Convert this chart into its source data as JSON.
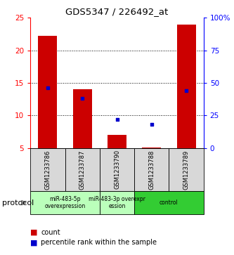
{
  "title": "GDS5347 / 226492_at",
  "samples": [
    "GSM1233786",
    "GSM1233787",
    "GSM1233790",
    "GSM1233788",
    "GSM1233789"
  ],
  "bar_values": [
    22.2,
    14.0,
    7.0,
    5.1,
    24.0
  ],
  "blue_percentiles": [
    46,
    38,
    22,
    18,
    44
  ],
  "ylim_left": [
    5,
    25
  ],
  "ylim_right": [
    0,
    100
  ],
  "yticks_left": [
    5,
    10,
    15,
    20,
    25
  ],
  "yticks_right": [
    0,
    25,
    50,
    75,
    100
  ],
  "bar_color": "#cc0000",
  "blue_color": "#0000cc",
  "group_defs": [
    {
      "xstart": 0,
      "xend": 2,
      "color": "#bbffbb",
      "label": "miR-483-5p\noverexpression"
    },
    {
      "xstart": 2,
      "xend": 3,
      "color": "#bbffbb",
      "label": "miR-483-3p overexpr\nession"
    },
    {
      "xstart": 3,
      "xend": 5,
      "color": "#33cc33",
      "label": "control"
    }
  ],
  "protocol_label": "protocol",
  "legend_count": "count",
  "legend_percentile": "percentile rank within the sample",
  "sample_bg": "#d8d8d8",
  "plot_bg": "#ffffff",
  "grid_lines": [
    10,
    15,
    20
  ],
  "bar_bottom": 5
}
